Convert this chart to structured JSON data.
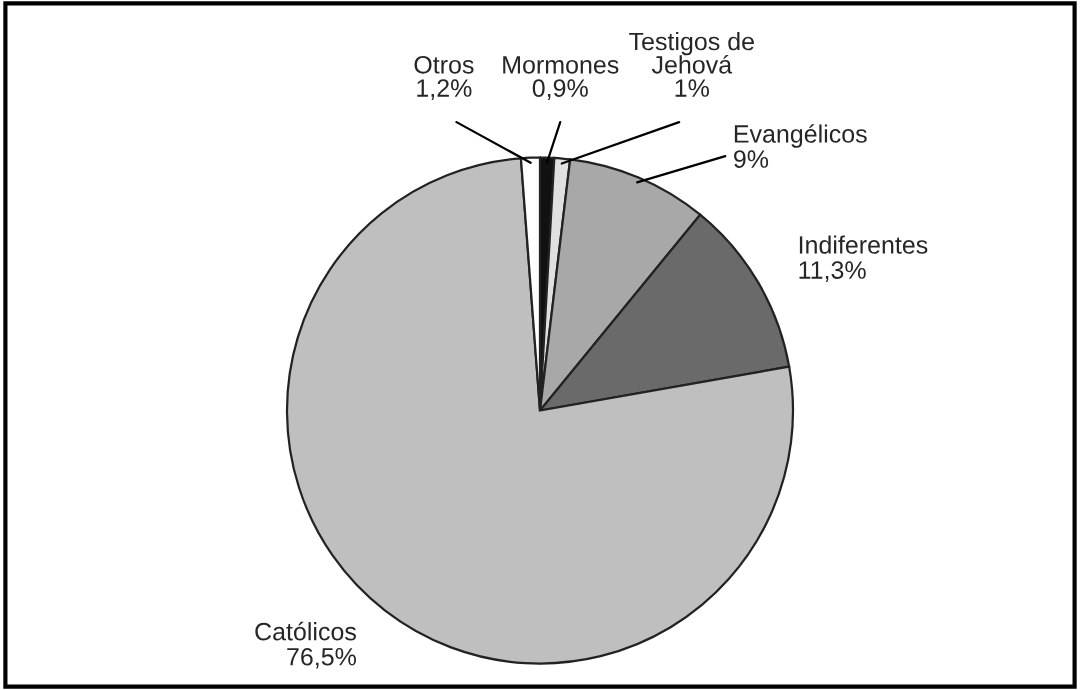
{
  "chart_data": {
    "type": "pie",
    "categories": [
      "Mormones",
      "Testigos de\nJehová",
      "Evangélicos",
      "Indiferentes",
      "Católicos",
      "Otros"
    ],
    "values": [
      0.9,
      1,
      9,
      11.3,
      76.5,
      1.2
    ],
    "value_labels": [
      "0,9%",
      "1%",
      "9%",
      "11,3%",
      "76,5%",
      "1,2%"
    ],
    "colors": [
      "#111111",
      "#e0e0e0",
      "#a8a8a8",
      "#6a6a6a",
      "#bfbfbf",
      "#ffffff"
    ],
    "legend": false
  }
}
